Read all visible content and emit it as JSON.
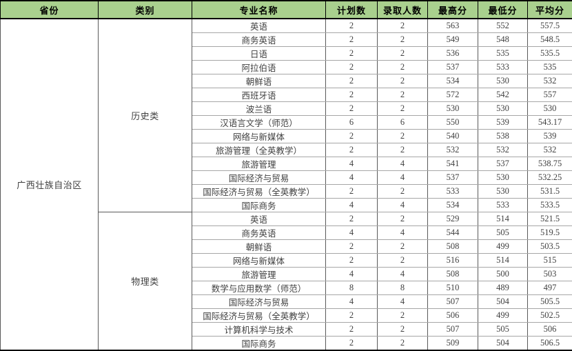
{
  "colors": {
    "header_bg": "#a9d08e",
    "header_text": "#000000",
    "body_text": "#404040",
    "outer_border": "#000000",
    "grid_vertical": "#595959",
    "grid_horizontal": "#a6a6a6"
  },
  "table": {
    "columns": [
      "省份",
      "类别",
      "专业名称",
      "计划数",
      "录取人数",
      "最高分",
      "最低分",
      "平均分"
    ],
    "province": "广西壮族自治区",
    "groups": [
      {
        "category": "历史类",
        "rows": [
          [
            "英语",
            2,
            2,
            563,
            552,
            557.5
          ],
          [
            "商务英语",
            2,
            2,
            549,
            548,
            548.5
          ],
          [
            "日语",
            2,
            2,
            536,
            535,
            535.5
          ],
          [
            "阿拉伯语",
            2,
            2,
            537,
            533,
            535
          ],
          [
            "朝鲜语",
            2,
            2,
            534,
            530,
            532
          ],
          [
            "西班牙语",
            2,
            2,
            572,
            542,
            557
          ],
          [
            "波兰语",
            2,
            2,
            530,
            530,
            530
          ],
          [
            "汉语言文学（师范）",
            6,
            6,
            550,
            539,
            543.17
          ],
          [
            "网络与新媒体",
            2,
            2,
            540,
            538,
            539
          ],
          [
            "旅游管理（全英教学）",
            2,
            2,
            532,
            532,
            532
          ],
          [
            "旅游管理",
            4,
            4,
            541,
            537,
            538.75
          ],
          [
            "国际经济与贸易",
            4,
            4,
            537,
            530,
            532.25
          ],
          [
            "国际经济与贸易（全英教学）",
            2,
            2,
            533,
            530,
            531.5
          ],
          [
            "国际商务",
            4,
            4,
            534,
            533,
            533.5
          ]
        ]
      },
      {
        "category": "物理类",
        "rows": [
          [
            "英语",
            2,
            2,
            529,
            514,
            521.5
          ],
          [
            "商务英语",
            4,
            4,
            544,
            505,
            519.5
          ],
          [
            "朝鲜语",
            2,
            2,
            508,
            499,
            503.5
          ],
          [
            "网络与新媒体",
            2,
            2,
            516,
            514,
            515
          ],
          [
            "旅游管理",
            4,
            4,
            508,
            500,
            503
          ],
          [
            "数学与应用数学（师范）",
            8,
            8,
            510,
            489,
            497
          ],
          [
            "国际经济与贸易",
            4,
            4,
            507,
            504,
            505.5
          ],
          [
            "国际经济与贸易（全英教学）",
            2,
            2,
            506,
            499,
            502.5
          ],
          [
            "计算机科学与技术",
            2,
            2,
            507,
            505,
            506
          ],
          [
            "国际商务",
            2,
            2,
            509,
            504,
            506.5
          ]
        ]
      }
    ]
  }
}
